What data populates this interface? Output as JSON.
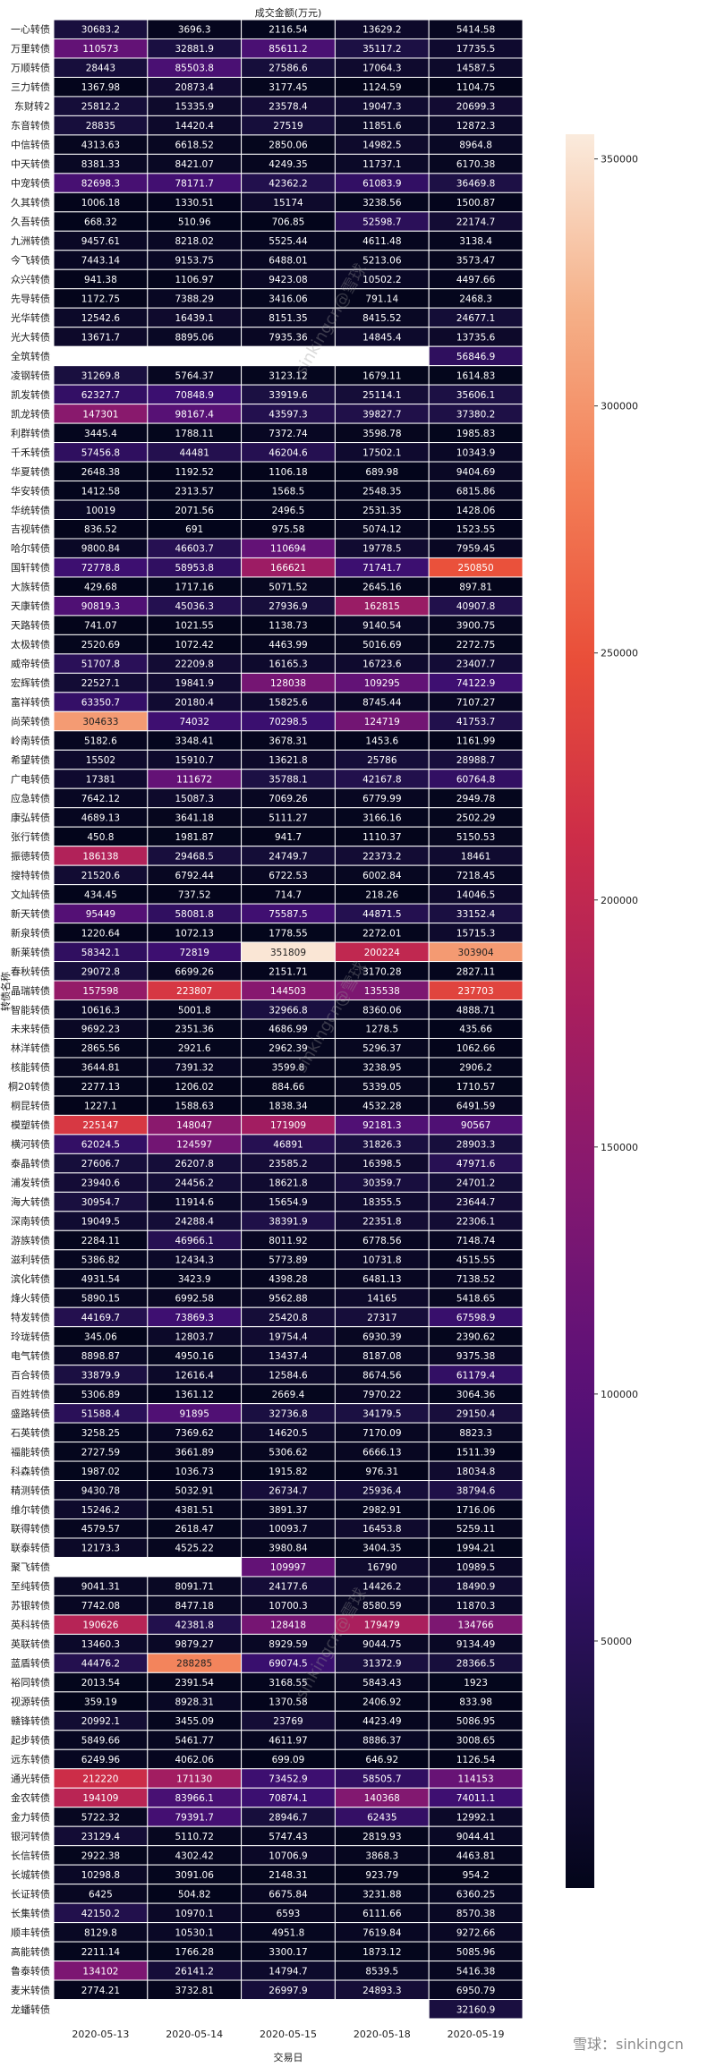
{
  "chart_data": {
    "type": "heatmap",
    "title": "成交金额(万元)",
    "xlabel": "交易日",
    "ylabel": "转债名称",
    "colorscale": "rocket",
    "colorbar": {
      "vmin": 0,
      "vmax": 355000,
      "ticks": [
        50000,
        100000,
        150000,
        200000,
        250000,
        300000,
        350000
      ]
    },
    "columns": [
      "2020-05-13",
      "2020-05-14",
      "2020-05-15",
      "2020-05-18",
      "2020-05-19"
    ],
    "rows": [
      {
        "name": "一心转债",
        "values": [
          "30683.2",
          "3696.3",
          "2116.54",
          "13629.2",
          "5414.58"
        ]
      },
      {
        "name": "万里转债",
        "values": [
          "110573",
          "32881.9",
          "85611.2",
          "35117.2",
          "17735.5"
        ]
      },
      {
        "name": "万顺转债",
        "values": [
          "28443",
          "85503.8",
          "27586.6",
          "17064.3",
          "14587.5"
        ]
      },
      {
        "name": "三力转债",
        "values": [
          "1367.98",
          "20873.4",
          "3177.45",
          "1124.59",
          "1104.75"
        ]
      },
      {
        "name": "东财转2",
        "values": [
          "25812.2",
          "15335.9",
          "23578.4",
          "19047.3",
          "20699.3"
        ]
      },
      {
        "name": "东音转债",
        "values": [
          "28835",
          "14420.4",
          "27519",
          "11851.6",
          "12872.3"
        ]
      },
      {
        "name": "中信转债",
        "values": [
          "4313.63",
          "6618.52",
          "2850.06",
          "14982.5",
          "8964.8"
        ]
      },
      {
        "name": "中天转债",
        "values": [
          "8381.33",
          "8421.07",
          "4249.35",
          "11737.1",
          "6170.38"
        ]
      },
      {
        "name": "中宠转债",
        "values": [
          "82698.3",
          "78171.7",
          "42362.2",
          "61083.9",
          "36469.8"
        ]
      },
      {
        "name": "久其转债",
        "values": [
          "1006.18",
          "1330.51",
          "15174",
          "3238.56",
          "1500.87"
        ]
      },
      {
        "name": "久吾转债",
        "values": [
          "668.32",
          "510.96",
          "706.85",
          "52598.7",
          "22174.7"
        ]
      },
      {
        "name": "九洲转债",
        "values": [
          "9457.61",
          "8218.02",
          "5525.44",
          "4611.48",
          "3138.4"
        ]
      },
      {
        "name": "今飞转债",
        "values": [
          "7443.14",
          "9153.75",
          "6488.01",
          "5213.06",
          "3573.47"
        ]
      },
      {
        "name": "众兴转债",
        "values": [
          "941.38",
          "1106.97",
          "9423.08",
          "10502.2",
          "4497.66"
        ]
      },
      {
        "name": "先导转债",
        "values": [
          "1172.75",
          "7388.29",
          "3416.06",
          "791.14",
          "2468.3"
        ]
      },
      {
        "name": "光华转债",
        "values": [
          "12542.6",
          "16439.1",
          "8151.35",
          "8415.52",
          "24677.1"
        ]
      },
      {
        "name": "光大转债",
        "values": [
          "13671.7",
          "8895.06",
          "7935.36",
          "14845.4",
          "13735.6"
        ]
      },
      {
        "name": "全筑转债",
        "values": [
          null,
          null,
          null,
          null,
          "56846.9"
        ]
      },
      {
        "name": "凌钢转债",
        "values": [
          "31269.8",
          "5764.37",
          "3123.12",
          "1679.11",
          "1614.83"
        ]
      },
      {
        "name": "凯发转债",
        "values": [
          "62327.7",
          "70848.9",
          "33919.6",
          "25114.1",
          "35606.1"
        ]
      },
      {
        "name": "凯龙转债",
        "values": [
          "147301",
          "98167.4",
          "43597.3",
          "39827.7",
          "37380.2"
        ]
      },
      {
        "name": "利群转债",
        "values": [
          "3445.4",
          "1788.11",
          "7372.74",
          "3598.78",
          "1985.83"
        ]
      },
      {
        "name": "千禾转债",
        "values": [
          "57456.8",
          "44481",
          "46204.6",
          "17502.1",
          "10343.9"
        ]
      },
      {
        "name": "华夏转债",
        "values": [
          "2648.38",
          "1192.52",
          "1106.18",
          "689.98",
          "9404.69"
        ]
      },
      {
        "name": "华安转债",
        "values": [
          "1412.58",
          "2313.57",
          "1568.5",
          "2548.35",
          "6815.86"
        ]
      },
      {
        "name": "华统转债",
        "values": [
          "10019",
          "2071.56",
          "2496.5",
          "2531.35",
          "1428.06"
        ]
      },
      {
        "name": "吉视转债",
        "values": [
          "836.52",
          "691",
          "975.58",
          "5074.12",
          "1523.55"
        ]
      },
      {
        "name": "哈尔转债",
        "values": [
          "9800.84",
          "46603.7",
          "110694",
          "19778.5",
          "7959.45"
        ]
      },
      {
        "name": "国轩转债",
        "values": [
          "72778.8",
          "58953.8",
          "166621",
          "71741.7",
          "250850"
        ]
      },
      {
        "name": "大族转债",
        "values": [
          "429.68",
          "1717.16",
          "5071.52",
          "2645.16",
          "897.81"
        ]
      },
      {
        "name": "天康转债",
        "values": [
          "90819.3",
          "45036.3",
          "27936.9",
          "162815",
          "40907.8"
        ]
      },
      {
        "name": "天路转债",
        "values": [
          "741.07",
          "1021.55",
          "1138.73",
          "9140.54",
          "3900.75"
        ]
      },
      {
        "name": "太极转债",
        "values": [
          "2520.69",
          "1072.42",
          "4463.99",
          "5016.69",
          "2272.75"
        ]
      },
      {
        "name": "威帝转债",
        "values": [
          "51707.8",
          "22209.8",
          "16165.3",
          "16723.6",
          "23407.7"
        ]
      },
      {
        "name": "宏辉转债",
        "values": [
          "22527.1",
          "19841.9",
          "128038",
          "109295",
          "74122.9"
        ]
      },
      {
        "name": "富祥转债",
        "values": [
          "63350.7",
          "20180.4",
          "15825.6",
          "8745.44",
          "7107.27"
        ]
      },
      {
        "name": "尚荣转债",
        "values": [
          "304633",
          "74032",
          "70298.5",
          "124719",
          "41753.7"
        ]
      },
      {
        "name": "岭南转债",
        "values": [
          "5182.6",
          "3348.41",
          "3678.31",
          "1453.6",
          "1161.99"
        ]
      },
      {
        "name": "希望转债",
        "values": [
          "15502",
          "15910.7",
          "13621.8",
          "25786",
          "28988.7"
        ]
      },
      {
        "name": "广电转债",
        "values": [
          "17381",
          "111672",
          "35788.1",
          "42167.8",
          "60764.8"
        ]
      },
      {
        "name": "应急转债",
        "values": [
          "7642.12",
          "15087.3",
          "7069.26",
          "6779.99",
          "2949.78"
        ]
      },
      {
        "name": "康弘转债",
        "values": [
          "4689.13",
          "3641.18",
          "5111.27",
          "3166.16",
          "2502.29"
        ]
      },
      {
        "name": "张行转债",
        "values": [
          "450.8",
          "1981.87",
          "941.7",
          "1110.37",
          "5150.53"
        ]
      },
      {
        "name": "振德转债",
        "values": [
          "186138",
          "29468.5",
          "24749.7",
          "22373.2",
          "18461"
        ]
      },
      {
        "name": "搜特转债",
        "values": [
          "21520.6",
          "6792.44",
          "6722.53",
          "6002.84",
          "7218.45"
        ]
      },
      {
        "name": "文灿转债",
        "values": [
          "434.45",
          "737.52",
          "714.7",
          "218.26",
          "14046.5"
        ]
      },
      {
        "name": "新天转债",
        "values": [
          "95449",
          "58081.8",
          "75587.5",
          "44871.5",
          "33152.4"
        ]
      },
      {
        "name": "新泉转债",
        "values": [
          "1220.64",
          "1072.13",
          "1778.55",
          "2272.01",
          "15715.3"
        ]
      },
      {
        "name": "新莱转债",
        "values": [
          "58342.1",
          "72819",
          "351809",
          "200224",
          "303904"
        ]
      },
      {
        "name": "春秋转债",
        "values": [
          "29072.8",
          "6699.26",
          "2151.71",
          "3170.28",
          "2827.11"
        ]
      },
      {
        "name": "晶瑞转债",
        "values": [
          "157598",
          "223807",
          "144503",
          "135538",
          "237703"
        ]
      },
      {
        "name": "智能转债",
        "values": [
          "10616.3",
          "5001.8",
          "32966.8",
          "8360.06",
          "4888.71"
        ]
      },
      {
        "name": "未来转债",
        "values": [
          "9692.23",
          "2351.36",
          "4686.99",
          "1278.5",
          "435.66"
        ]
      },
      {
        "name": "林洋转债",
        "values": [
          "2865.56",
          "2921.6",
          "2962.39",
          "5296.37",
          "1062.66"
        ]
      },
      {
        "name": "核能转债",
        "values": [
          "3644.81",
          "7391.32",
          "3599.8",
          "3238.95",
          "2906.2"
        ]
      },
      {
        "name": "桐20转债",
        "values": [
          "2277.13",
          "1206.02",
          "884.66",
          "5339.05",
          "1710.57"
        ]
      },
      {
        "name": "桐昆转债",
        "values": [
          "1227.1",
          "1588.63",
          "1838.34",
          "4532.28",
          "6491.59"
        ]
      },
      {
        "name": "模塑转债",
        "values": [
          "225147",
          "148047",
          "171909",
          "92181.3",
          "90567"
        ]
      },
      {
        "name": "横河转债",
        "values": [
          "62024.5",
          "124597",
          "46891",
          "31826.3",
          "28903.3"
        ]
      },
      {
        "name": "泰晶转债",
        "values": [
          "27606.7",
          "26207.8",
          "23585.2",
          "16398.5",
          "47971.6"
        ]
      },
      {
        "name": "浦发转债",
        "values": [
          "23940.6",
          "24456.2",
          "18621.8",
          "30359.7",
          "24701.2"
        ]
      },
      {
        "name": "海大转债",
        "values": [
          "30954.7",
          "11914.6",
          "15654.9",
          "18355.5",
          "23644.7"
        ]
      },
      {
        "name": "深南转债",
        "values": [
          "19049.5",
          "24288.4",
          "38391.9",
          "22351.8",
          "22306.1"
        ]
      },
      {
        "name": "游族转债",
        "values": [
          "2284.11",
          "46966.1",
          "8011.92",
          "6778.56",
          "7148.74"
        ]
      },
      {
        "name": "滋利转债",
        "values": [
          "5386.82",
          "12434.3",
          "5773.89",
          "10731.8",
          "4515.55"
        ]
      },
      {
        "name": "滨化转债",
        "values": [
          "4931.54",
          "3423.9",
          "4398.28",
          "6481.13",
          "7138.52"
        ]
      },
      {
        "name": "烽火转债",
        "values": [
          "5890.15",
          "6992.58",
          "9562.88",
          "14165",
          "5418.65"
        ]
      },
      {
        "name": "特发转债",
        "values": [
          "44169.7",
          "73869.3",
          "25420.8",
          "27317",
          "67598.9"
        ]
      },
      {
        "name": "玲珑转债",
        "values": [
          "345.06",
          "12803.7",
          "19754.4",
          "6930.39",
          "2390.62"
        ]
      },
      {
        "name": "电气转债",
        "values": [
          "8898.87",
          "4950.16",
          "13437.4",
          "8187.08",
          "9375.38"
        ]
      },
      {
        "name": "百合转债",
        "values": [
          "33879.9",
          "12616.4",
          "12584.6",
          "8674.56",
          "61179.4"
        ]
      },
      {
        "name": "百姓转债",
        "values": [
          "5306.89",
          "1361.12",
          "2669.4",
          "7970.22",
          "3064.36"
        ]
      },
      {
        "name": "盛路转债",
        "values": [
          "51588.4",
          "91895",
          "32736.8",
          "34179.5",
          "29150.4"
        ]
      },
      {
        "name": "石英转债",
        "values": [
          "3258.25",
          "7369.62",
          "14620.5",
          "7170.09",
          "8823.3"
        ]
      },
      {
        "name": "福能转债",
        "values": [
          "2727.59",
          "3661.89",
          "5306.62",
          "6666.13",
          "1511.39"
        ]
      },
      {
        "name": "科森转债",
        "values": [
          "1987.02",
          "1036.73",
          "1915.82",
          "976.31",
          "18034.8"
        ]
      },
      {
        "name": "精测转债",
        "values": [
          "9430.78",
          "5032.91",
          "26734.7",
          "25936.4",
          "38794.6"
        ]
      },
      {
        "name": "维尔转债",
        "values": [
          "15246.2",
          "4381.51",
          "3891.37",
          "2982.91",
          "1716.06"
        ]
      },
      {
        "name": "联得转债",
        "values": [
          "4579.57",
          "2618.47",
          "10093.7",
          "16453.8",
          "5259.11"
        ]
      },
      {
        "name": "联泰转债",
        "values": [
          "12173.3",
          "4525.22",
          "3980.84",
          "3404.35",
          "1994.21"
        ]
      },
      {
        "name": "聚飞转债",
        "values": [
          null,
          null,
          "109997",
          "16790",
          "10989.5"
        ]
      },
      {
        "name": "至纯转债",
        "values": [
          "9041.31",
          "8091.71",
          "24177.6",
          "14426.2",
          "18490.9"
        ]
      },
      {
        "name": "苏银转债",
        "values": [
          "7742.08",
          "8477.18",
          "10700.3",
          "8580.59",
          "11870.3"
        ]
      },
      {
        "name": "英科转债",
        "values": [
          "190626",
          "42381.8",
          "128418",
          "179479",
          "134766"
        ]
      },
      {
        "name": "英联转债",
        "values": [
          "13460.3",
          "9879.27",
          "8929.59",
          "9044.75",
          "9134.49"
        ]
      },
      {
        "name": "蓝盾转债",
        "values": [
          "44476.2",
          "288285",
          "69074.5",
          "31372.9",
          "28366.5"
        ]
      },
      {
        "name": "裕同转债",
        "values": [
          "2013.54",
          "2391.54",
          "3168.55",
          "5843.43",
          "1923"
        ]
      },
      {
        "name": "视源转债",
        "values": [
          "359.19",
          "8928.31",
          "1370.58",
          "2406.92",
          "833.98"
        ]
      },
      {
        "name": "赣锋转债",
        "values": [
          "20992.1",
          "3455.09",
          "23769",
          "4423.49",
          "5086.95"
        ]
      },
      {
        "name": "起步转债",
        "values": [
          "5849.66",
          "5461.77",
          "4611.97",
          "8886.37",
          "3008.65"
        ]
      },
      {
        "name": "远东转债",
        "values": [
          "6249.96",
          "4062.06",
          "699.09",
          "646.92",
          "1126.54"
        ]
      },
      {
        "name": "通光转债",
        "values": [
          "212220",
          "171130",
          "73452.9",
          "58505.7",
          "114153"
        ]
      },
      {
        "name": "金农转债",
        "values": [
          "194109",
          "83966.1",
          "70874.1",
          "140368",
          "74011.1"
        ]
      },
      {
        "name": "金力转债",
        "values": [
          "5722.32",
          "79391.7",
          "28946.7",
          "62435",
          "12992.1"
        ]
      },
      {
        "name": "银河转债",
        "values": [
          "23129.4",
          "5110.72",
          "5747.43",
          "2819.93",
          "9044.41"
        ]
      },
      {
        "name": "长信转债",
        "values": [
          "2922.38",
          "4302.42",
          "10706.9",
          "3868.3",
          "4463.81"
        ]
      },
      {
        "name": "长城转债",
        "values": [
          "10298.8",
          "3091.06",
          "2148.31",
          "923.79",
          "954.2"
        ]
      },
      {
        "name": "长证转债",
        "values": [
          "6425",
          "504.82",
          "6675.84",
          "3231.88",
          "6360.25"
        ]
      },
      {
        "name": "长集转债",
        "values": [
          "42150.2",
          "10970.1",
          "6593",
          "6111.66",
          "8570.38"
        ]
      },
      {
        "name": "顺丰转债",
        "values": [
          "8129.8",
          "10530.1",
          "4951.8",
          "7619.84",
          "9272.66"
        ]
      },
      {
        "name": "高能转债",
        "values": [
          "2211.14",
          "1766.28",
          "3300.17",
          "1873.12",
          "5085.96"
        ]
      },
      {
        "name": "鲁泰转债",
        "values": [
          "134102",
          "26141.2",
          "14794.7",
          "8539.5",
          "5416.38"
        ]
      },
      {
        "name": "麦米转债",
        "values": [
          "2774.21",
          "3732.81",
          "26997.9",
          "24893.3",
          "6950.79"
        ]
      },
      {
        "name": "龙蟠转债",
        "values": [
          null,
          null,
          null,
          null,
          "32160.9"
        ]
      }
    ]
  },
  "watermark": {
    "text": "sinkingcn@雪球",
    "footer": "雪球：sinkingcn"
  }
}
